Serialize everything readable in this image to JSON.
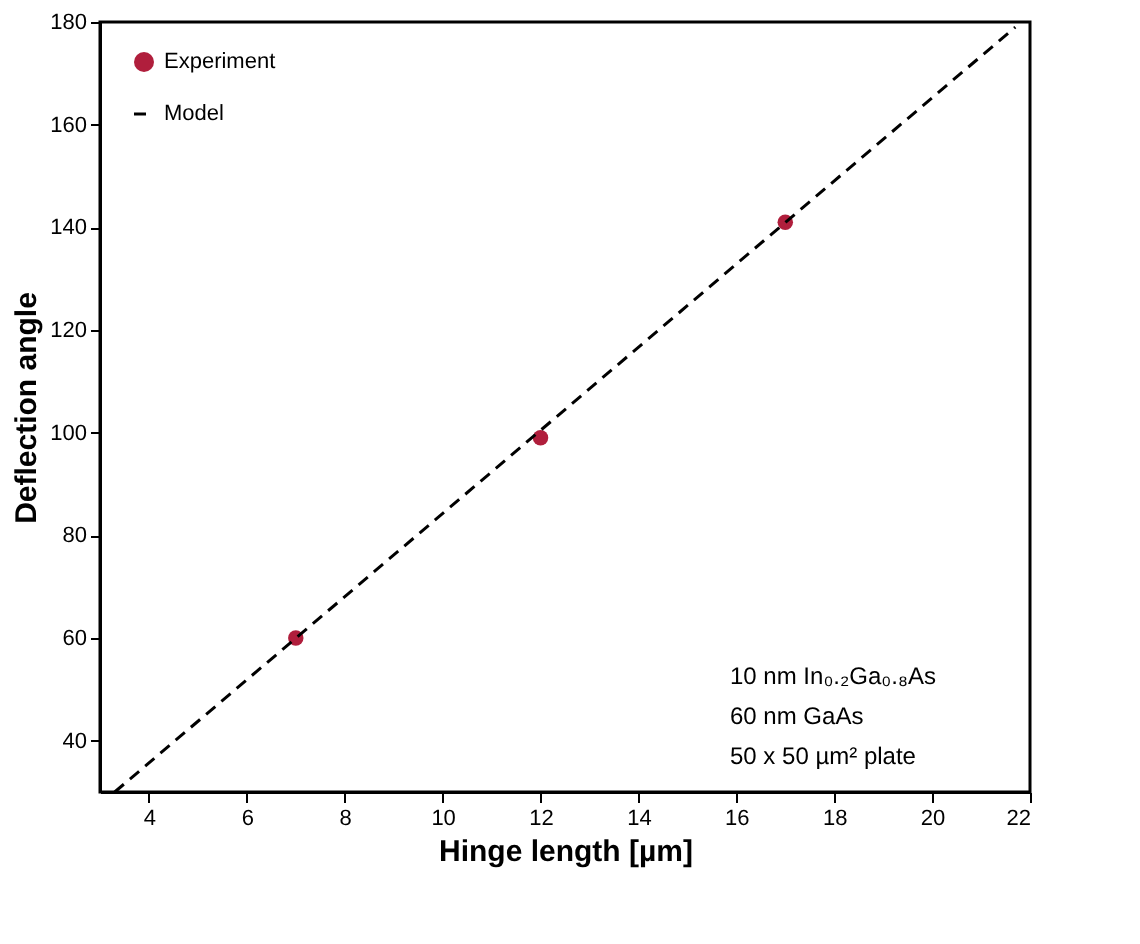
{
  "chart_data": {
    "type": "scatter",
    "xlabel": "Hinge length [µm]",
    "ylabel": "Deflection angle",
    "xlim": [
      3,
      22
    ],
    "xticks": [
      4,
      6,
      8,
      10,
      12,
      14,
      16,
      18,
      20,
      22
    ],
    "ylim": [
      30,
      180
    ],
    "yticks": [
      40,
      60,
      80,
      100,
      120,
      140,
      160,
      180
    ],
    "grid": false,
    "legend": "top left",
    "series": [
      {
        "name": "Experiment",
        "marker": "circle",
        "color": "#b01e3c",
        "x": [
          7,
          12,
          17
        ],
        "values": [
          60,
          99,
          141
        ]
      },
      {
        "name": "Model",
        "type": "line",
        "line_style": "dashed",
        "marker": "none",
        "color": "#000000",
        "x": [
          3.3,
          21.7
        ],
        "values": [
          30,
          179
        ]
      }
    ],
    "annotations": [
      "10 nm In₀.₂Ga₀.₈As",
      "60 nm GaAs",
      "50 x 50 µm² plate"
    ]
  }
}
